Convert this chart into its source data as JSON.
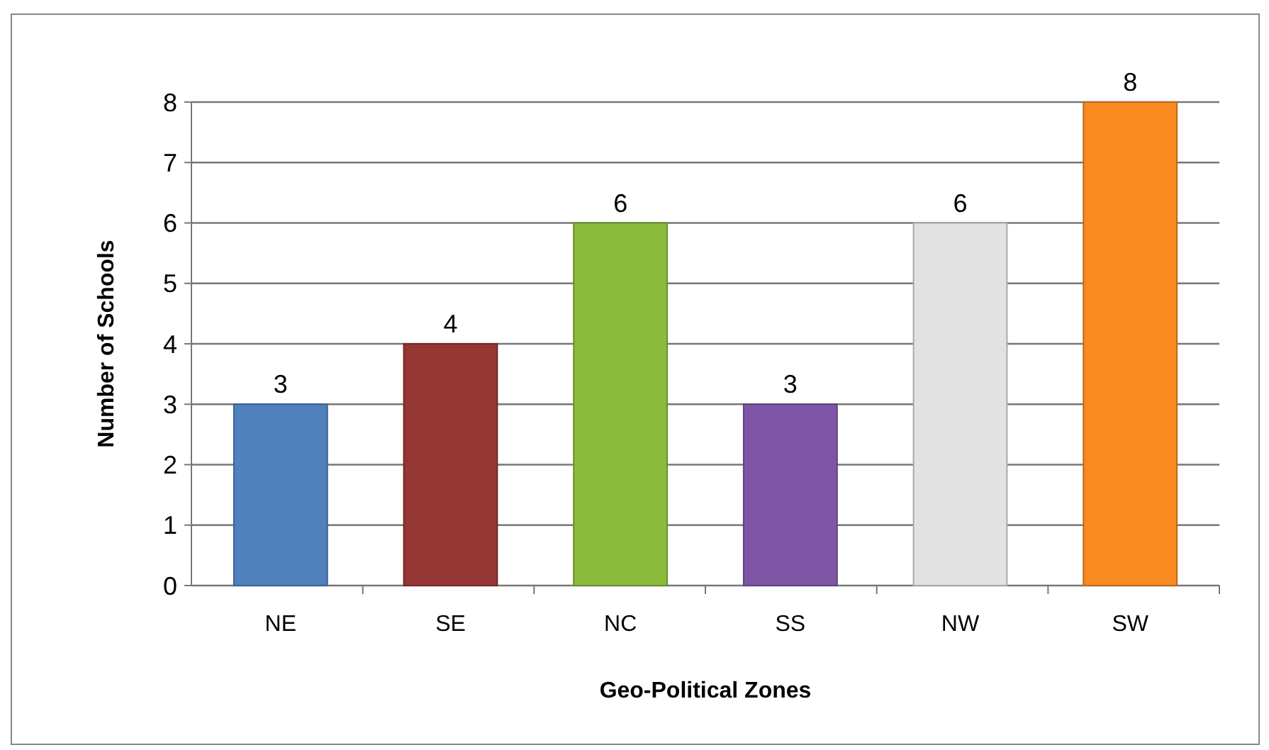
{
  "chart_data": {
    "type": "bar",
    "xlabel": "Geo-Political Zones",
    "ylabel": "Number of Schools",
    "categories": [
      "NE",
      "SE",
      "NC",
      "SS",
      "NW",
      "SW"
    ],
    "values": [
      3,
      4,
      6,
      3,
      6,
      8
    ],
    "colors": [
      "#4f81bd",
      "#953735",
      "#8cbb3c",
      "#7f55a5",
      "#e2e2e2",
      "#f98a20"
    ],
    "ylim": [
      0,
      8
    ],
    "yticks": [
      0,
      1,
      2,
      3,
      4,
      5,
      6,
      7,
      8
    ],
    "grid": "y",
    "data_labels": true
  }
}
